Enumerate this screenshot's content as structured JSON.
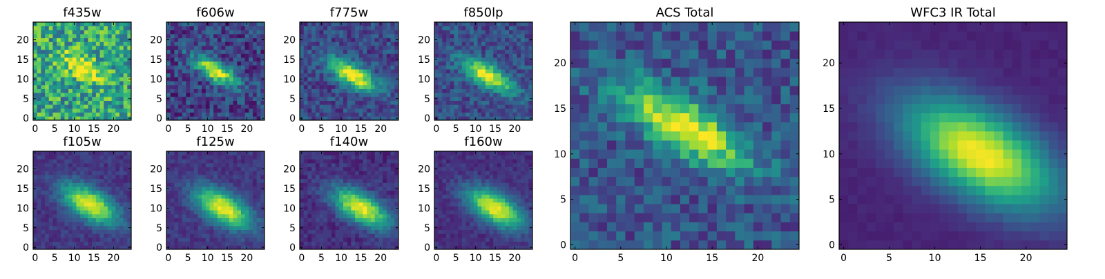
{
  "chart_data": [
    {
      "type": "heatmap",
      "title": "f435w",
      "colormap": "viridis",
      "grid_size": 25,
      "x_ticks": [
        0,
        5,
        10,
        15,
        20
      ],
      "y_ticks": [
        0,
        5,
        10,
        15,
        20
      ],
      "xlim": [
        -0.5,
        24.5
      ],
      "ylim": [
        -0.5,
        24.5
      ],
      "peak_xy": [
        12,
        13
      ],
      "intensity_description": "noisy, mostly uniform green-yellow"
    },
    {
      "type": "heatmap",
      "title": "f606w",
      "colormap": "viridis",
      "grid_size": 25,
      "x_ticks": [
        0,
        5,
        10,
        15,
        20
      ],
      "y_ticks": [
        0,
        5,
        10,
        15,
        20
      ],
      "xlim": [
        -0.5,
        24.5
      ],
      "ylim": [
        -0.5,
        24.5
      ],
      "peak_xy": [
        12,
        12
      ]
    },
    {
      "type": "heatmap",
      "title": "f775w",
      "colormap": "viridis",
      "grid_size": 25,
      "x_ticks": [
        0,
        5,
        10,
        15,
        20
      ],
      "y_ticks": [
        0,
        5,
        10,
        15,
        20
      ],
      "xlim": [
        -0.5,
        24.5
      ],
      "ylim": [
        -0.5,
        24.5
      ],
      "peak_xy": [
        13,
        11
      ]
    },
    {
      "type": "heatmap",
      "title": "f850lp",
      "colormap": "viridis",
      "grid_size": 25,
      "x_ticks": [
        0,
        5,
        10,
        15,
        20
      ],
      "y_ticks": [
        0,
        5,
        10,
        15,
        20
      ],
      "xlim": [
        -0.5,
        24.5
      ],
      "ylim": [
        -0.5,
        24.5
      ],
      "peak_xy": [
        13,
        11
      ]
    },
    {
      "type": "heatmap",
      "title": "f105w",
      "colormap": "viridis",
      "grid_size": 25,
      "x_ticks": [
        0,
        5,
        10,
        15,
        20
      ],
      "y_ticks": [
        0,
        5,
        10,
        15,
        20
      ],
      "xlim": [
        -0.5,
        24.5
      ],
      "ylim": [
        -0.5,
        24.5
      ],
      "peak_xy": [
        14,
        11
      ]
    },
    {
      "type": "heatmap",
      "title": "f125w",
      "colormap": "viridis",
      "grid_size": 25,
      "x_ticks": [
        0,
        5,
        10,
        15,
        20
      ],
      "y_ticks": [
        0,
        5,
        10,
        15,
        20
      ],
      "xlim": [
        -0.5,
        24.5
      ],
      "ylim": [
        -0.5,
        24.5
      ],
      "peak_xy": [
        14,
        10
      ]
    },
    {
      "type": "heatmap",
      "title": "f140w",
      "colormap": "viridis",
      "grid_size": 25,
      "x_ticks": [
        0,
        5,
        10,
        15,
        20
      ],
      "y_ticks": [
        0,
        5,
        10,
        15,
        20
      ],
      "xlim": [
        -0.5,
        24.5
      ],
      "ylim": [
        -0.5,
        24.5
      ],
      "peak_xy": [
        15,
        10
      ]
    },
    {
      "type": "heatmap",
      "title": "f160w",
      "colormap": "viridis",
      "grid_size": 25,
      "x_ticks": [
        0,
        5,
        10,
        15,
        20
      ],
      "y_ticks": [
        0,
        5,
        10,
        15,
        20
      ],
      "xlim": [
        -0.5,
        24.5
      ],
      "ylim": [
        -0.5,
        24.5
      ],
      "peak_xy": [
        15,
        10
      ]
    },
    {
      "type": "heatmap",
      "title": "ACS Total",
      "colormap": "viridis",
      "grid_size": 25,
      "x_ticks": [
        0,
        5,
        10,
        15,
        20
      ],
      "y_ticks": [
        0,
        5,
        10,
        15,
        20
      ],
      "xlim": [
        -0.5,
        24.5
      ],
      "ylim": [
        -0.5,
        24.5
      ],
      "peak_xy": [
        12,
        13
      ]
    },
    {
      "type": "heatmap",
      "title": "WFC3 IR Total",
      "colormap": "viridis",
      "grid_size": 25,
      "x_ticks": [
        0,
        5,
        10,
        15,
        20
      ],
      "y_ticks": [
        0,
        5,
        10,
        15,
        20
      ],
      "xlim": [
        -0.5,
        24.5
      ],
      "ylim": [
        -0.5,
        24.5
      ],
      "peak_xy": [
        15,
        10
      ]
    }
  ],
  "colormap_stops": [
    "#440154",
    "#482878",
    "#3e4a89",
    "#31688e",
    "#26828e",
    "#1f9e89",
    "#35b779",
    "#6ece58",
    "#b5de2b",
    "#fde725"
  ]
}
